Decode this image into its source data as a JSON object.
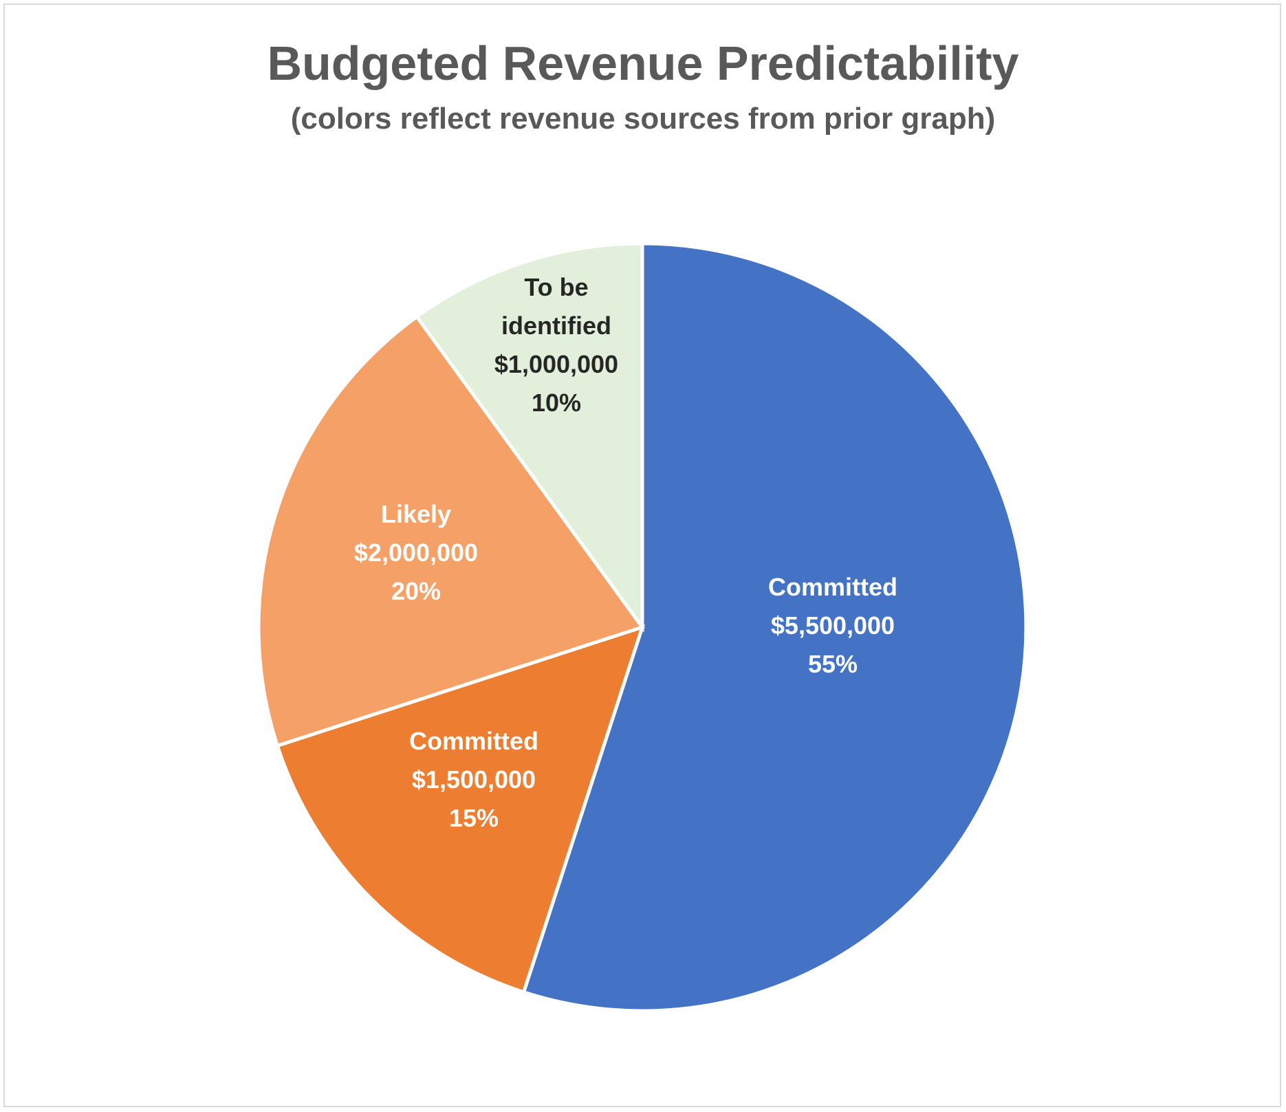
{
  "chart_data": {
    "type": "pie",
    "title": "Budgeted Revenue Predictability",
    "subtitle": "(colors reflect revenue sources from prior graph)",
    "start_angle": "12 o'clock, clockwise",
    "slices": [
      {
        "label": "Committed",
        "value": 5500000,
        "value_label": "$5,500,000",
        "percent_label": "55%",
        "color": "#4472C4",
        "text_color": "#FFFFFF"
      },
      {
        "label": "Committed",
        "value": 1500000,
        "value_label": "$1,500,000",
        "percent_label": "15%",
        "color": "#ED7D31",
        "text_color": "#FFFFFF"
      },
      {
        "label": "Likely",
        "value": 2000000,
        "value_label": "$2,000,000",
        "percent_label": "20%",
        "color": "#F4A067",
        "text_color": "#FFFFFF"
      },
      {
        "label": "To be identified",
        "label_lines": [
          "To be",
          "identified"
        ],
        "value": 1000000,
        "value_label": "$1,000,000",
        "percent_label": "10%",
        "color": "#E2EFDA",
        "text_color": "#262626"
      }
    ]
  }
}
